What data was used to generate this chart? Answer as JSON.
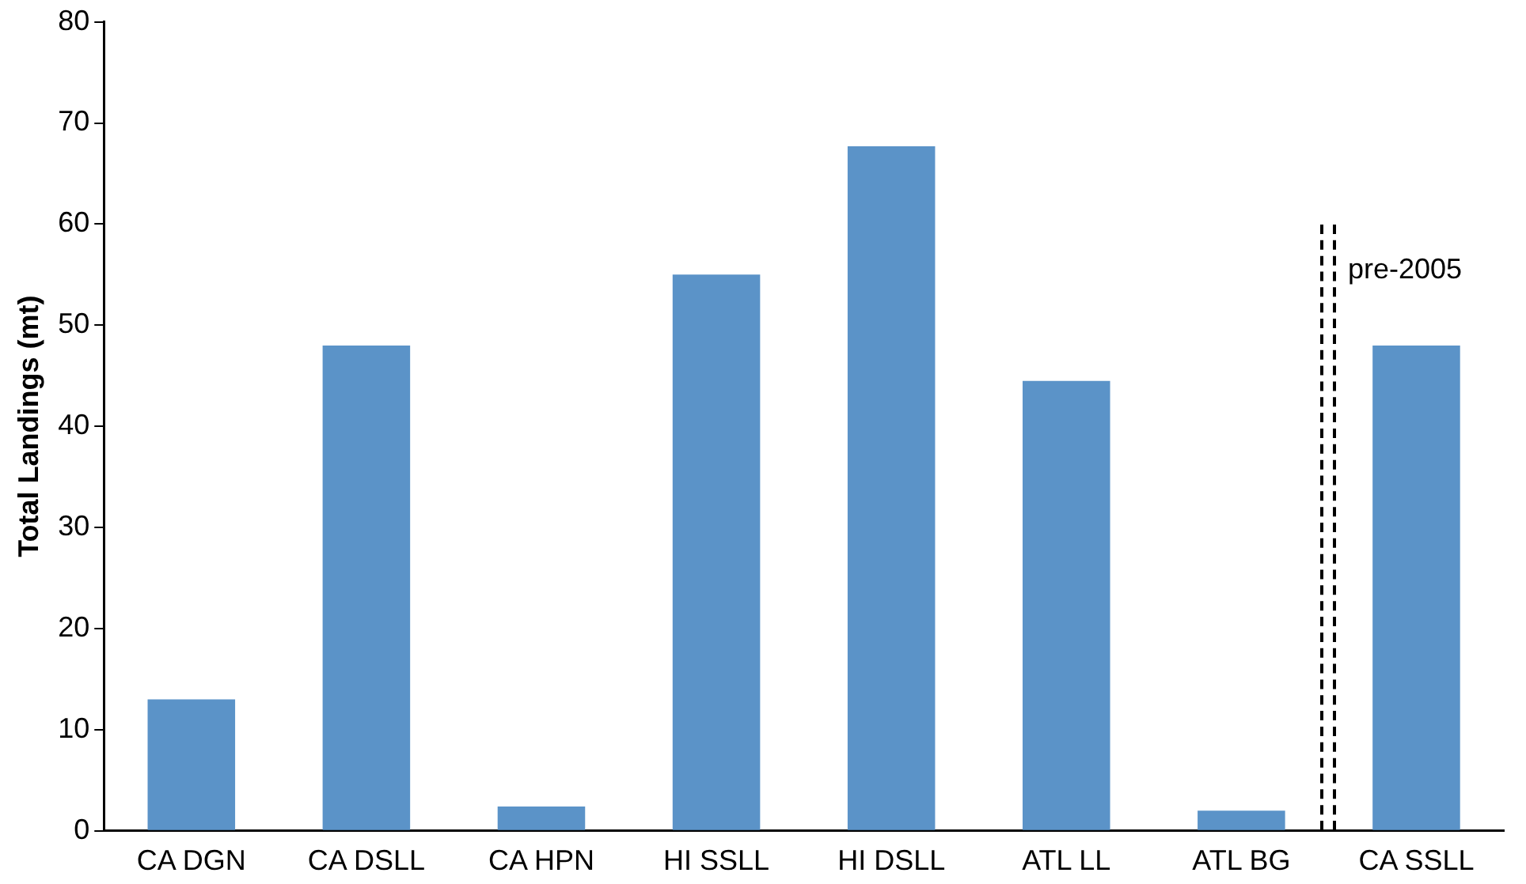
{
  "chart_data": {
    "type": "bar",
    "ylabel": "Total Landings (mt)",
    "categories": [
      "CA DGN",
      "CA DSLL",
      "CA HPN",
      "HI SSLL",
      "HI DSLL",
      "ATL LL",
      "ATL BG",
      "CA SSLL"
    ],
    "values": [
      13,
      48,
      2.4,
      55,
      67.7,
      44.5,
      2,
      48
    ],
    "color": "#5b93c8",
    "ylim": [
      0,
      80
    ],
    "yticks": [
      0,
      10,
      20,
      30,
      40,
      50,
      60,
      70,
      80
    ],
    "grid": false,
    "legend": false,
    "annotations": [
      "pre-2005"
    ]
  }
}
